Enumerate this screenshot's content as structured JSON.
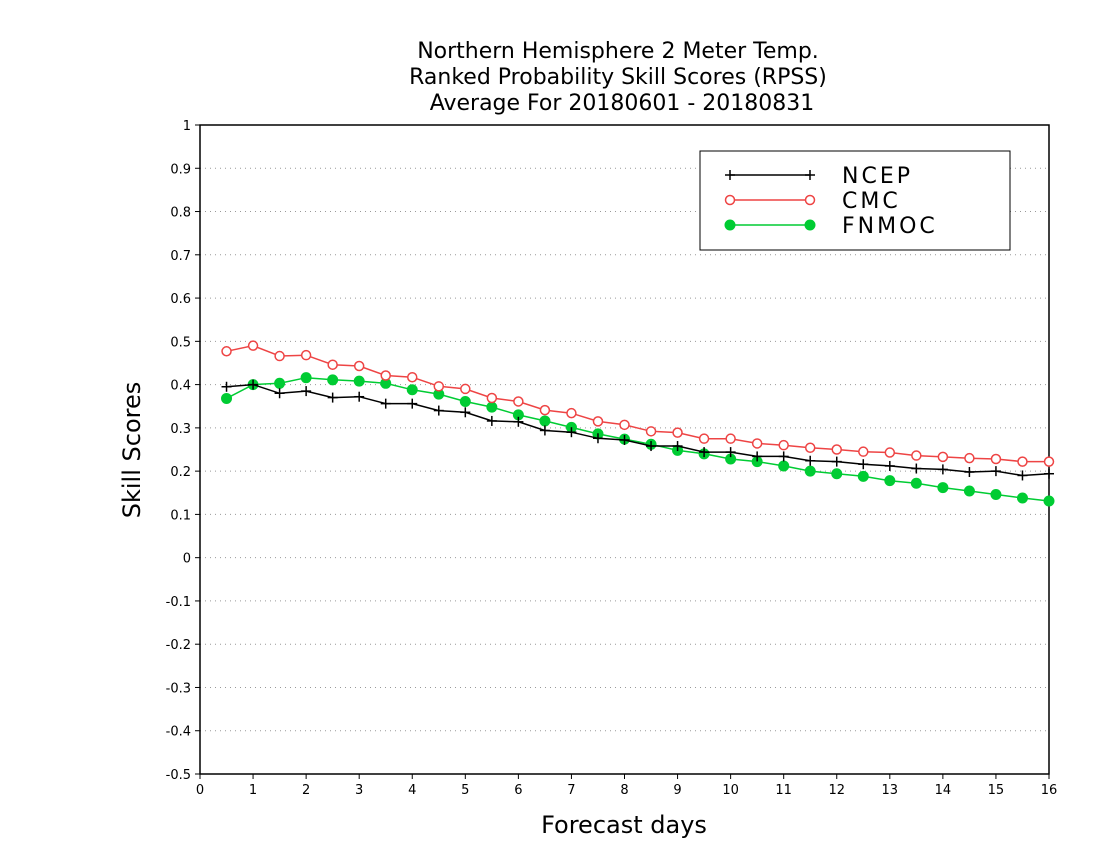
{
  "chart_data": {
    "type": "line",
    "title": [
      "Northern Hemisphere 2 Meter Temp.",
      "Ranked Probability Skill Scores (RPSS)",
      "Average For 20180601 - 20180831"
    ],
    "xlabel": "Forecast days",
    "ylabel": "Skill Scores",
    "xlim": [
      0,
      16
    ],
    "ylim": [
      -0.5,
      1
    ],
    "x_ticks": [
      "0",
      "1",
      "2",
      "3",
      "4",
      "5",
      "6",
      "7",
      "8",
      "9",
      "10",
      "11",
      "12",
      "13",
      "14",
      "15",
      "16"
    ],
    "y_ticks": [
      "1",
      "0.9",
      "0.8",
      "0.7",
      "0.6",
      "0.5",
      "0.4",
      "0.3",
      "0.2",
      "0.1",
      "0",
      "-0.1",
      "-0.2",
      "-0.3",
      "-0.4",
      "-0.5"
    ],
    "grid": "horizontal dotted",
    "legend_position": "top-right",
    "x": [
      0.5,
      1,
      1.5,
      2,
      2.5,
      3,
      3.5,
      4,
      4.5,
      5,
      5.5,
      6,
      6.5,
      7,
      7.5,
      8,
      8.5,
      9,
      9.5,
      10,
      10.5,
      11,
      11.5,
      12,
      12.5,
      13,
      13.5,
      14,
      14.5,
      15,
      15.5,
      16
    ],
    "series": [
      {
        "name": "NCEP",
        "color": "#000000",
        "marker": "plus",
        "values": [
          0.395,
          0.4,
          0.38,
          0.385,
          0.37,
          0.372,
          0.356,
          0.356,
          0.34,
          0.336,
          0.316,
          0.314,
          0.294,
          0.29,
          0.276,
          0.272,
          0.258,
          0.258,
          0.244,
          0.244,
          0.234,
          0.234,
          0.224,
          0.222,
          0.216,
          0.212,
          0.206,
          0.204,
          0.198,
          0.2,
          0.19,
          0.194
        ]
      },
      {
        "name": "CMC",
        "color": "#ee4444",
        "marker": "open-circle",
        "values": [
          0.477,
          0.49,
          0.466,
          0.468,
          0.446,
          0.443,
          0.421,
          0.417,
          0.396,
          0.39,
          0.369,
          0.361,
          0.341,
          0.334,
          0.315,
          0.307,
          0.292,
          0.289,
          0.275,
          0.275,
          0.264,
          0.26,
          0.254,
          0.25,
          0.245,
          0.243,
          0.236,
          0.233,
          0.23,
          0.228,
          0.222,
          0.222
        ]
      },
      {
        "name": "FNMOC",
        "color": "#00cc33",
        "marker": "filled-circle",
        "values": [
          0.368,
          0.4,
          0.403,
          0.416,
          0.411,
          0.408,
          0.403,
          0.388,
          0.378,
          0.361,
          0.348,
          0.33,
          0.316,
          0.301,
          0.286,
          0.274,
          0.262,
          0.248,
          0.24,
          0.228,
          0.222,
          0.212,
          0.2,
          0.194,
          0.188,
          0.178,
          0.172,
          0.162,
          0.154,
          0.146,
          0.138,
          0.131
        ]
      }
    ]
  }
}
